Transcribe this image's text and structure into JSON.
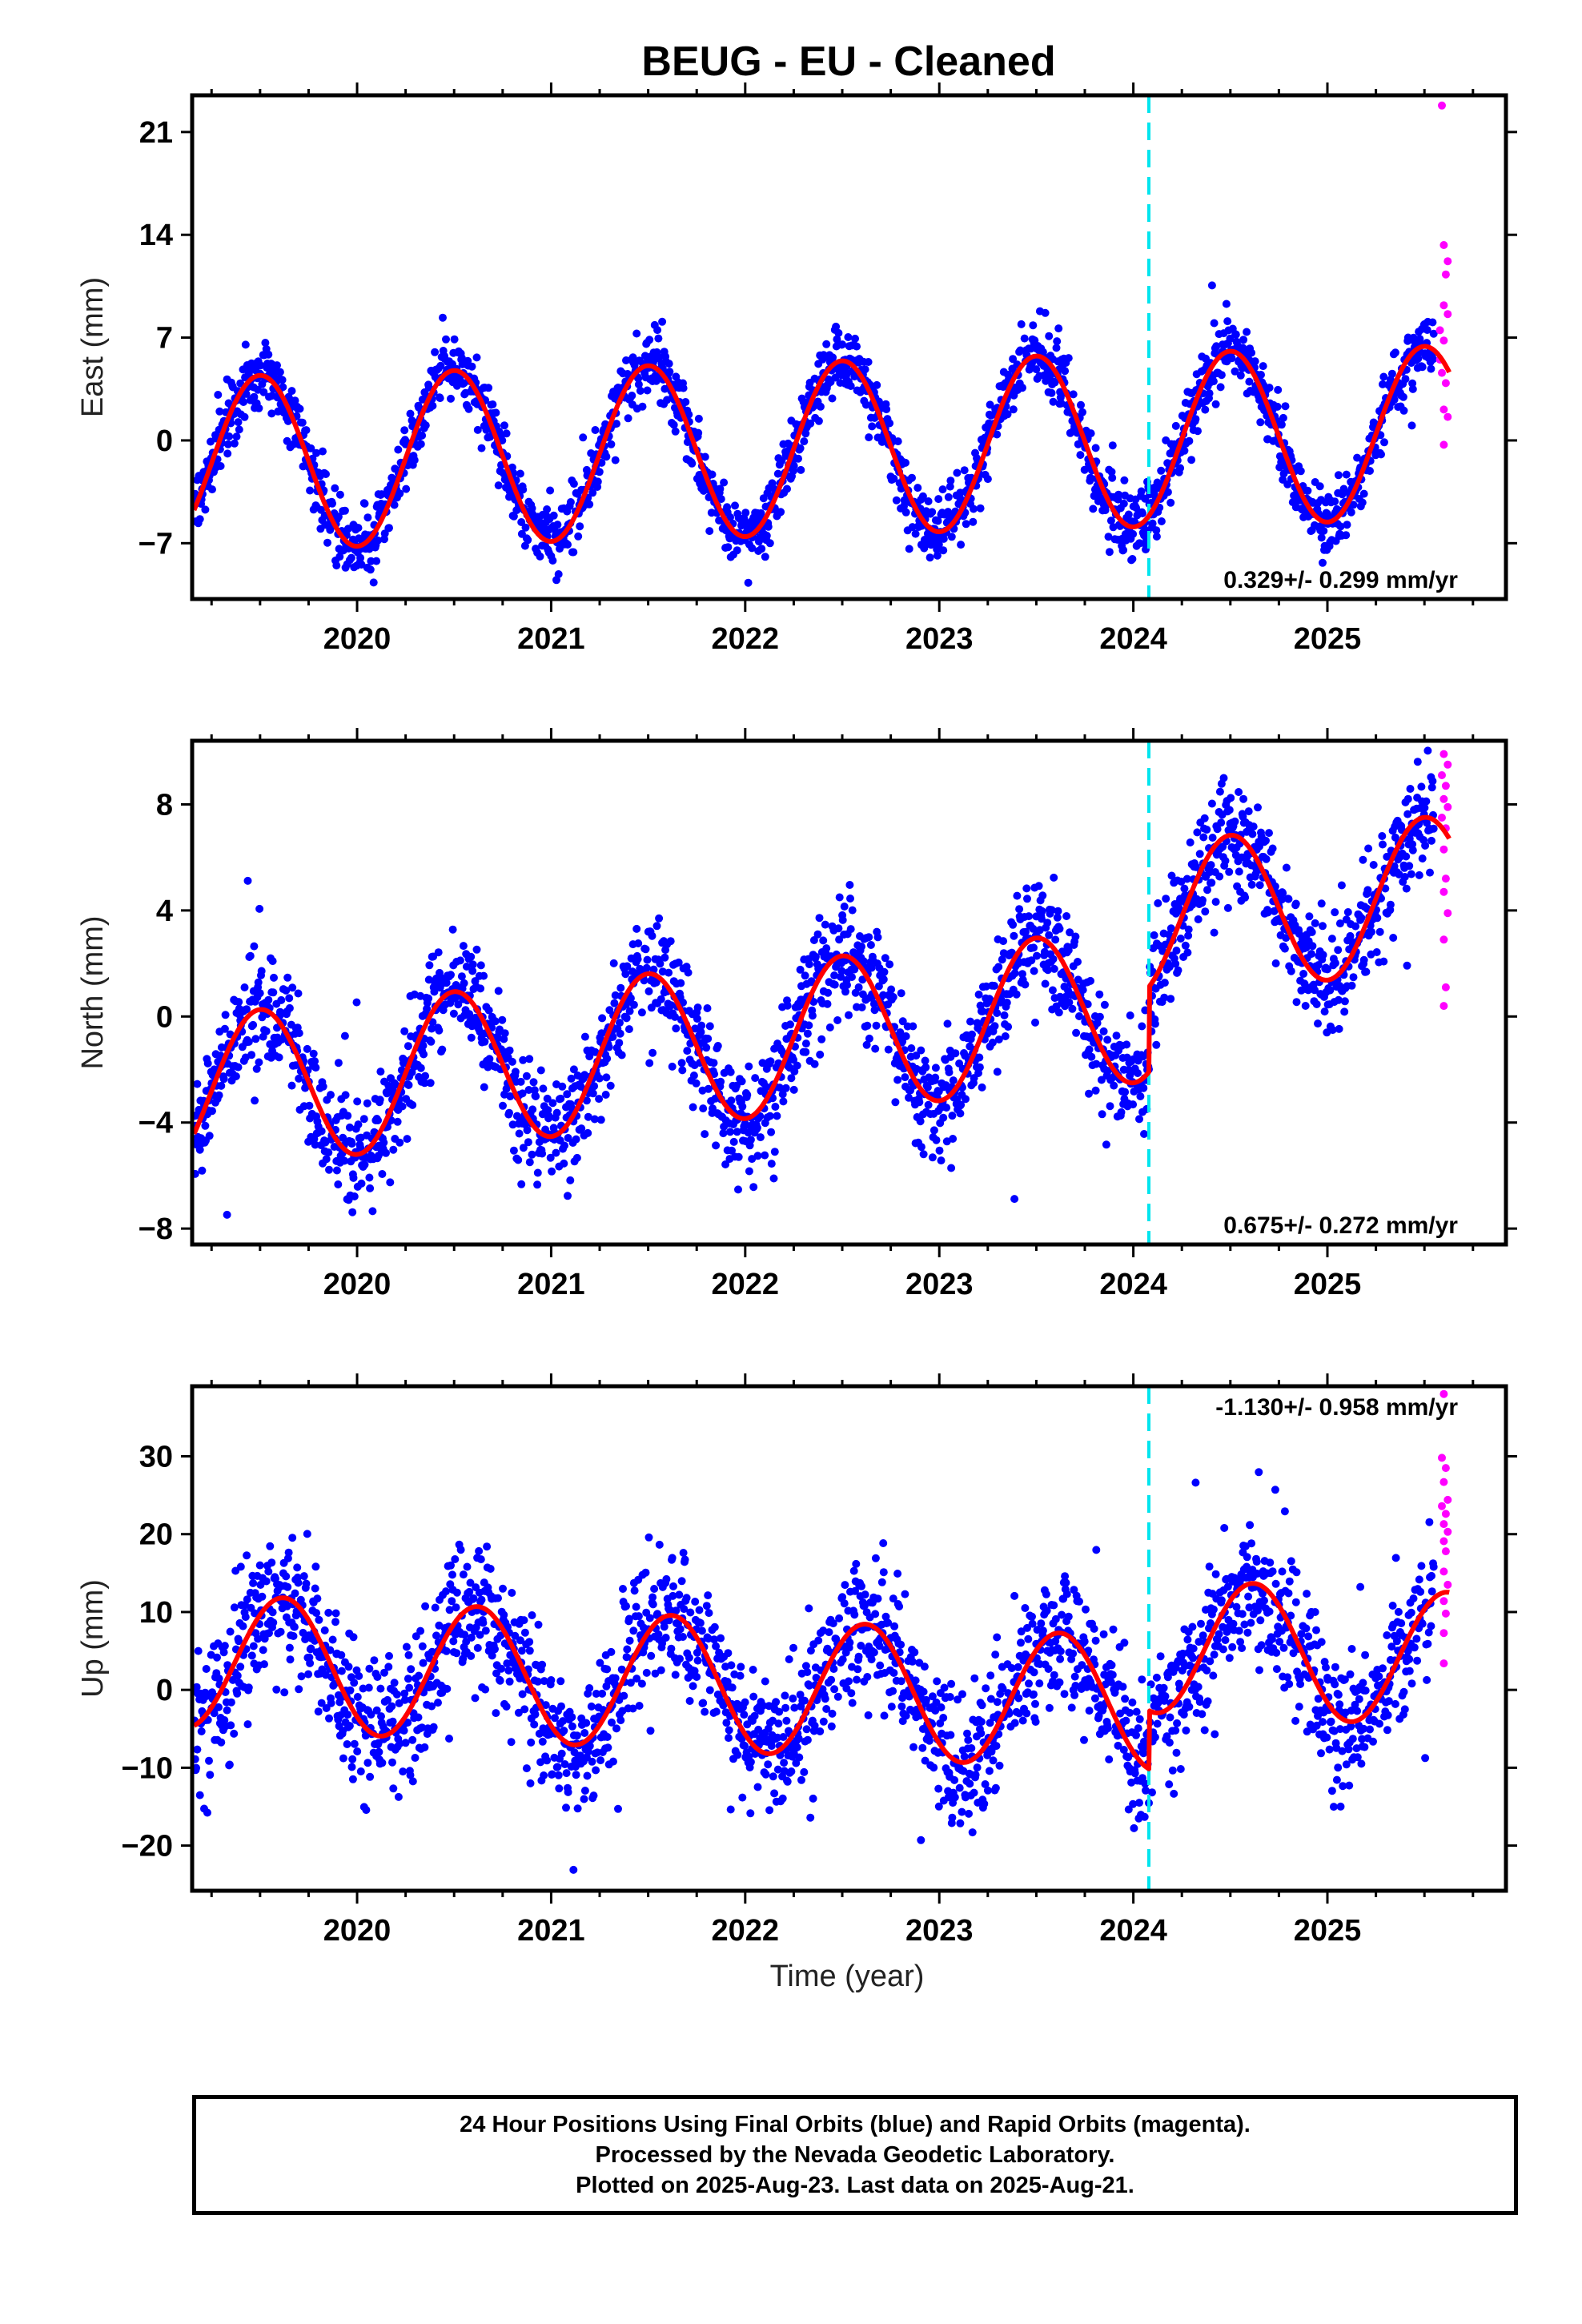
{
  "page": {
    "title": "BEUG  - EU - Cleaned",
    "caption": [
      "24 Hour Positions Using Final Orbits (blue) and Rapid Orbits (magenta).",
      "Processed by the Nevada Geodetic Laboratory.",
      "Plotted on 2025-Aug-23. Last data on 2025-Aug-21."
    ],
    "xlabel": "Time (year)"
  },
  "colors": {
    "final": "#0000ff",
    "rapid": "#ff00ff",
    "model": "#ff0000",
    "event": "#00e5ee",
    "axis": "#000000"
  },
  "chart_data": [
    {
      "type": "scatter",
      "component": "east",
      "ylabel": "East (mm)",
      "xlim": [
        2019.15,
        2025.92
      ],
      "ylim": [
        -10.8,
        23.5
      ],
      "yticks": [
        -7,
        0,
        7,
        14,
        21
      ],
      "xticks": [
        2020,
        2021,
        2022,
        2023,
        2024,
        2025
      ],
      "rate_label": "0.329+/- 0.299 mm/yr",
      "event_line": 2024.08,
      "model": {
        "offset": -0.55,
        "rate": 0.329,
        "t0": 2022.3,
        "amp": 5.9,
        "peak": 2019.5,
        "jump": 0.0,
        "start": 2019.16,
        "end": 2025.63
      },
      "final_range": [
        2019.16,
        2025.55
      ],
      "final_noise": 1.15,
      "rapid": [
        [
          2025.59,
          22.8
        ],
        [
          2025.6,
          13.3
        ],
        [
          2025.62,
          12.2
        ],
        [
          2025.61,
          11.3
        ],
        [
          2025.6,
          9.2
        ],
        [
          2025.62,
          8.6
        ],
        [
          2025.58,
          7.5
        ],
        [
          2025.6,
          6.8
        ],
        [
          2025.58,
          5.5
        ],
        [
          2025.59,
          4.6
        ],
        [
          2025.61,
          3.9
        ],
        [
          2025.6,
          2.1
        ],
        [
          2025.62,
          1.6
        ],
        [
          2025.6,
          -0.3
        ]
      ]
    },
    {
      "type": "scatter",
      "component": "north",
      "ylabel": "North (mm)",
      "xlim": [
        2019.15,
        2025.92
      ],
      "ylim": [
        -8.6,
        10.4
      ],
      "yticks": [
        -8,
        -4,
        0,
        4,
        8
      ],
      "xticks": [
        2020,
        2021,
        2022,
        2023,
        2024,
        2025
      ],
      "rate_label": "0.675+/- 0.272 mm/yr",
      "event_line": 2024.08,
      "model": {
        "offset": -0.75,
        "rate": 0.675,
        "t0": 2022.3,
        "amp": 2.9,
        "peak": 2019.5,
        "jump": 3.2,
        "start": 2019.16,
        "end": 2025.63
      },
      "final_range": [
        2019.16,
        2025.55
      ],
      "final_noise": 1.05,
      "rapid": [
        [
          2025.6,
          9.9
        ],
        [
          2025.62,
          9.5
        ],
        [
          2025.59,
          9.1
        ],
        [
          2025.61,
          8.7
        ],
        [
          2025.6,
          8.2
        ],
        [
          2025.62,
          7.9
        ],
        [
          2025.59,
          7.5
        ],
        [
          2025.61,
          7.1
        ],
        [
          2025.6,
          6.3
        ],
        [
          2025.61,
          5.2
        ],
        [
          2025.6,
          4.7
        ],
        [
          2025.62,
          3.9
        ],
        [
          2025.6,
          2.9
        ],
        [
          2025.61,
          1.1
        ],
        [
          2025.6,
          0.4
        ]
      ]
    },
    {
      "type": "scatter",
      "component": "up",
      "ylabel": "Up (mm)",
      "xlim": [
        2019.15,
        2025.92
      ],
      "ylim": [
        -25.8,
        39.0
      ],
      "yticks": [
        -20,
        -10,
        0,
        10,
        20,
        30
      ],
      "xticks": [
        2020,
        2021,
        2022,
        2023,
        2024,
        2025
      ],
      "rate_label": "-1.130+/- 0.958 mm/yr",
      "event_line": 2024.08,
      "model": {
        "offset": 0.2,
        "rate": -1.13,
        "t0": 2022.3,
        "amp": 8.6,
        "peak": 2019.62,
        "jump": 7.5,
        "start": 2019.16,
        "end": 2025.63
      },
      "final_range": [
        2019.16,
        2025.55
      ],
      "final_noise": 4.3,
      "rapid": [
        [
          2025.6,
          38.0
        ],
        [
          2025.59,
          29.8
        ],
        [
          2025.61,
          28.5
        ],
        [
          2025.6,
          26.7
        ],
        [
          2025.62,
          24.4
        ],
        [
          2025.59,
          23.6
        ],
        [
          2025.61,
          22.6
        ],
        [
          2025.6,
          21.3
        ],
        [
          2025.62,
          20.3
        ],
        [
          2025.6,
          19.1
        ],
        [
          2025.61,
          17.8
        ],
        [
          2025.6,
          15.2
        ],
        [
          2025.62,
          13.5
        ],
        [
          2025.6,
          11.4
        ],
        [
          2025.61,
          9.8
        ],
        [
          2025.6,
          7.3
        ],
        [
          2025.6,
          3.4
        ]
      ]
    }
  ]
}
